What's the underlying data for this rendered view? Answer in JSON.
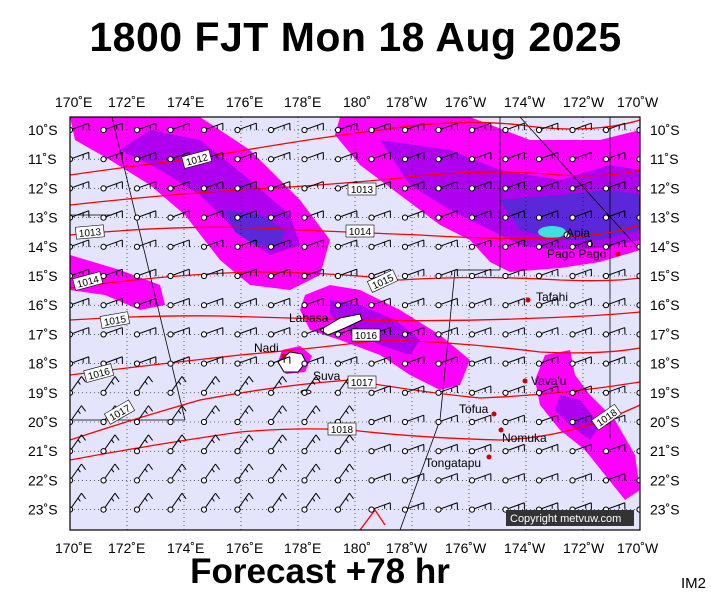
{
  "title": "1800 FJT Mon 18 Aug 2025",
  "footer": "Forecast +78 hr",
  "corner_label": "IM2",
  "copyright": "Copyright metvuw.com",
  "lon_labels": [
    "170˚E",
    "172˚E",
    "174˚E",
    "176˚E",
    "178˚E",
    "180˚",
    "178˚W",
    "176˚W",
    "174˚W",
    "172˚W",
    "170˚W"
  ],
  "lat_labels": [
    "10˚S",
    "11˚S",
    "12˚S",
    "13˚S",
    "14˚S",
    "15˚S",
    "16˚S",
    "17˚S",
    "18˚S",
    "19˚S",
    "20˚S",
    "21˚S",
    "22˚S",
    "23˚S"
  ],
  "isobar_labels": [
    "1012",
    "1013",
    "1013",
    "1014",
    "1014",
    "1015",
    "1015",
    "1016",
    "1016",
    "1017",
    "1017",
    "1018",
    "1018"
  ],
  "places": [
    "Apia",
    "Pago Pago",
    "Tafahi",
    "Labasa",
    "Nadi",
    "Suva",
    "Vava'u",
    "Tofua",
    "Nomuka",
    "Tongatapu"
  ],
  "colors": {
    "background": "#e4e4fc",
    "rain_light": "#ff00ff",
    "rain_medium": "#b000f0",
    "rain_heavy": "#5a28d8",
    "rain_core": "#40e0e0",
    "isobar": "#ff0000"
  }
}
